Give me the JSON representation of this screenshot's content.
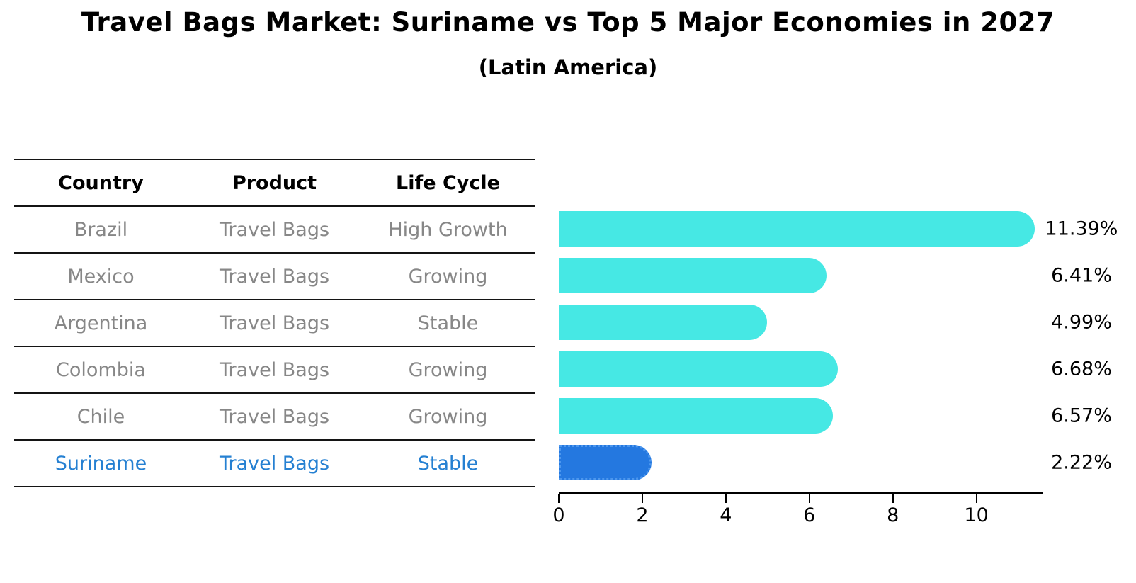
{
  "title": "Travel Bags Market: Suriname vs Top 5 Major Economies in 2027",
  "subtitle": "(Latin America)",
  "table": {
    "columns": [
      "Country",
      "Product",
      "Life Cycle"
    ],
    "rows": [
      {
        "country": "Brazil",
        "product": "Travel Bags",
        "life_cycle": "High Growth",
        "highlight": false
      },
      {
        "country": "Mexico",
        "product": "Travel Bags",
        "life_cycle": "Growing",
        "highlight": false
      },
      {
        "country": "Argentina",
        "product": "Travel Bags",
        "life_cycle": "Stable",
        "highlight": false
      },
      {
        "country": "Colombia",
        "product": "Travel Bags",
        "life_cycle": "Growing",
        "highlight": false
      },
      {
        "country": "Chile",
        "product": "Travel Bags",
        "life_cycle": "Growing",
        "highlight": false
      },
      {
        "country": "Suriname",
        "product": "Travel Bags",
        "life_cycle": "Stable",
        "highlight": true
      }
    ]
  },
  "chart_data": {
    "type": "bar",
    "orientation": "horizontal",
    "title": "Travel Bags Market: Suriname vs Top 5 Major Economies in 2027 (Latin America)",
    "categories": [
      "Brazil",
      "Mexico",
      "Argentina",
      "Colombia",
      "Chile",
      "Suriname"
    ],
    "values": [
      11.39,
      6.41,
      4.99,
      6.68,
      6.57,
      2.22
    ],
    "value_labels": [
      "11.39%",
      "6.41%",
      "4.99%",
      "6.68%",
      "6.57%",
      "2.22%"
    ],
    "xlabel": "",
    "ylabel": "",
    "xlim": [
      0,
      11.55
    ],
    "xticks": [
      0,
      2,
      4,
      6,
      8,
      10
    ],
    "grid": false,
    "legend": "none",
    "highlight_index": 5
  },
  "colors": {
    "bar_default": "#46e8e4",
    "bar_highlight": "#2478e0",
    "bar_highlight_border": "#4c97ee",
    "highlight_text": "#2580d2",
    "row_text": "#878787",
    "header_text": "#000000",
    "axis": "#000000"
  }
}
